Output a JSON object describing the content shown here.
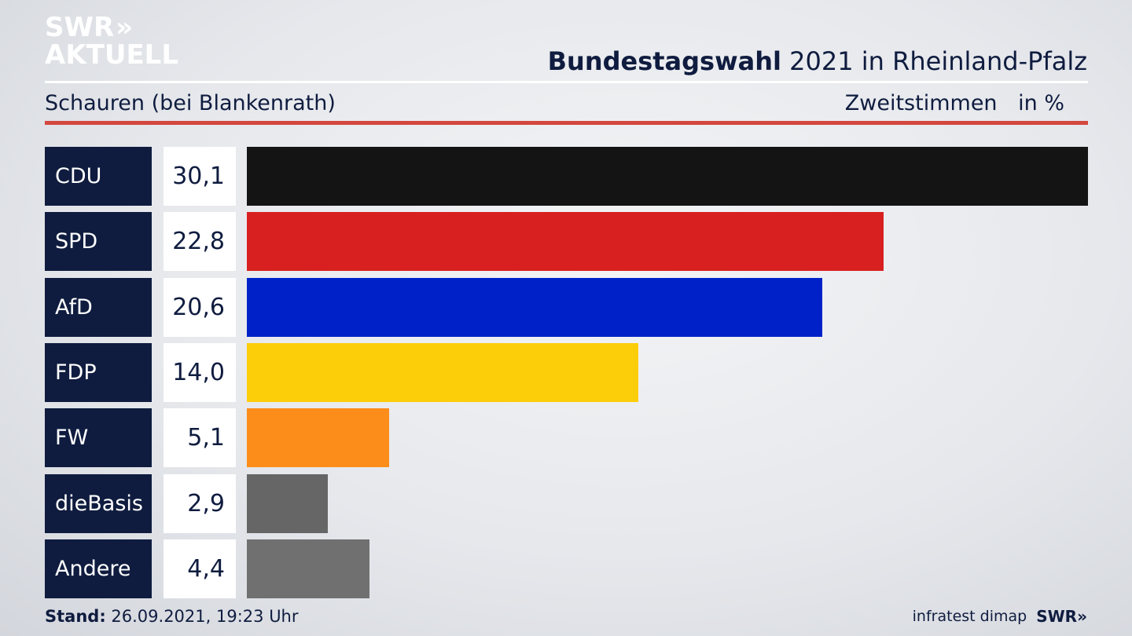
{
  "logo": {
    "line1": "SWR",
    "arrows": "»",
    "line2": "AKTUELL"
  },
  "header": {
    "title_bold": "Bundestagswahl",
    "title_rest": "2021 in Rheinland-Pfalz",
    "location": "Schauren (bei Blankenrath)",
    "measure": "Zweitstimmen",
    "unit": "in %"
  },
  "chart_data": {
    "type": "bar",
    "categories": [
      "CDU",
      "SPD",
      "AfD",
      "FDP",
      "FW",
      "dieBasis",
      "Andere"
    ],
    "values": [
      30.1,
      22.8,
      20.6,
      14.0,
      5.1,
      2.9,
      4.4
    ],
    "value_labels": [
      "30,1",
      "22,8",
      "20,6",
      "14,0",
      "5,1",
      "2,9",
      "4,4"
    ],
    "colors": [
      "#141414",
      "#d82020",
      "#0021c8",
      "#fccd09",
      "#fc8d1a",
      "#666666",
      "#707070"
    ],
    "xlim": [
      0,
      30.1
    ],
    "title": "Bundestagswahl 2021 in Rheinland-Pfalz",
    "subtitle": "Schauren (bei Blankenrath)",
    "ylabel": "Zweitstimmen in %"
  },
  "footer": {
    "stand_label": "Stand:",
    "stand_value": "26.09.2021, 19:23 Uhr",
    "source": "infratest dimap",
    "brand": "SWR",
    "brand_arrows": "»"
  },
  "colors": {
    "navy": "#0f1c3f",
    "accent_red": "#d3473e"
  }
}
